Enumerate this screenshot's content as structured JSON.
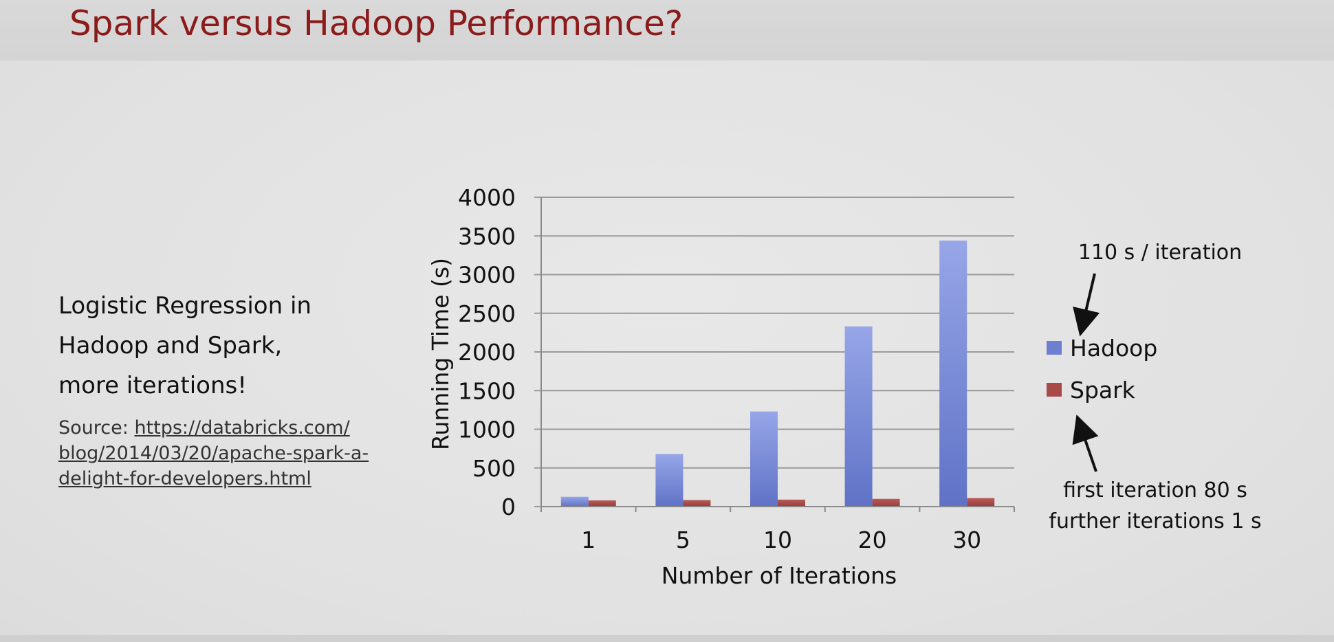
{
  "slide": {
    "title": "Spark versus Hadoop Performance?",
    "description_lines": [
      "Logistic Regression in",
      "Hadoop and Spark,",
      "more iterations!"
    ],
    "source_label": "Source:",
    "source_link_lines": [
      "https://databricks.com/",
      "blog/2014/03/20/apache-spark-a-",
      "delight-for-developers.html"
    ],
    "annotations": {
      "hadoop_rate": "110 s / iteration",
      "spark_rate_line1": "first iteration 80 s",
      "spark_rate_line2": "further iterations 1 s"
    }
  },
  "chart_data": {
    "type": "bar",
    "title": "",
    "xlabel": "Number of Iterations",
    "ylabel": "Running Time (s)",
    "categories": [
      "1",
      "5",
      "10",
      "20",
      "30"
    ],
    "series": [
      {
        "name": "Hadoop",
        "color": "#7d8ed8",
        "values": [
          127,
          680,
          1230,
          2330,
          3440
        ]
      },
      {
        "name": "Spark",
        "color": "#a84a48",
        "values": [
          80,
          85,
          90,
          100,
          110
        ]
      }
    ],
    "ylim": [
      0,
      4000
    ],
    "yticks": [
      0,
      500,
      1000,
      1500,
      2000,
      2500,
      3000,
      3500,
      4000
    ],
    "grid": true,
    "legend_position": "right"
  }
}
